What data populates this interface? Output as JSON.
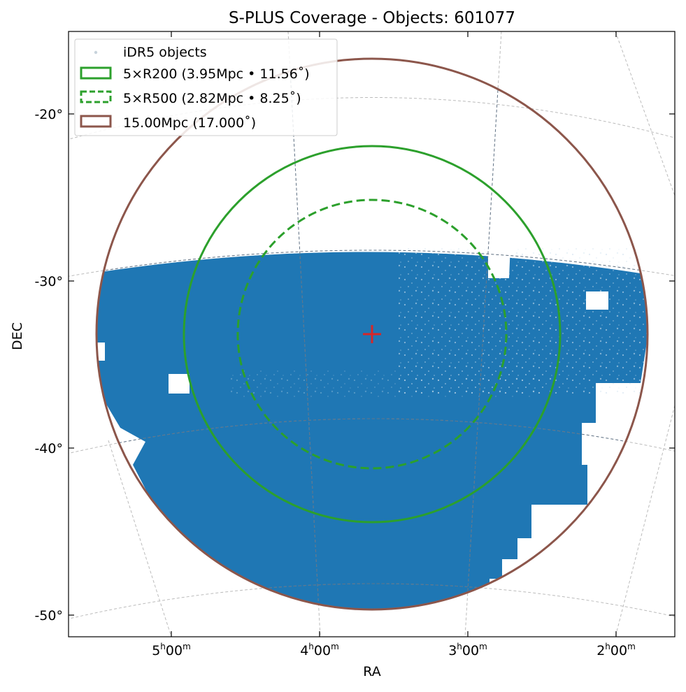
{
  "chart_data": {
    "type": "scatter",
    "title": "S-PLUS Coverage - Objects: 601077",
    "xlabel": "RA",
    "ylabel": "DEC",
    "projection": "gnomonic sky map centred on the cluster",
    "center": {
      "ra_hours": 3.64,
      "dec_deg": -33.4
    },
    "xlim_ra_hours": [
      5.72,
      1.6
    ],
    "ylim_dec_deg": [
      -51.2,
      -15.0
    ],
    "ra_ticks": [
      {
        "value": 5,
        "label_h": "5",
        "label_m": "00"
      },
      {
        "value": 4,
        "label_h": "4",
        "label_m": "00"
      },
      {
        "value": 3,
        "label_h": "3",
        "label_m": "00"
      },
      {
        "value": 2,
        "label_h": "2",
        "label_m": "00"
      }
    ],
    "dec_ticks": [
      {
        "value": -20,
        "label": "-20°"
      },
      {
        "value": -30,
        "label": "-30°"
      },
      {
        "value": -40,
        "label": "-40°"
      },
      {
        "value": -50,
        "label": "-50°"
      }
    ],
    "grid": true,
    "legend_position": "upper-left",
    "series": [
      {
        "name": "iDR5 objects",
        "kind": "point-density coverage",
        "n_objects": 601077,
        "color": "#1f77b4",
        "footprint_dec_range": [
          -49.6,
          -28.0
        ]
      },
      {
        "name": "5×R200 (3.95Mpc • 11.56$^\\circ$)",
        "label_display": "5×R200 (3.95Mpc • 11.56˚)",
        "kind": "circle",
        "radius_deg": 11.56,
        "radius_mpc": 3.95,
        "linestyle": "solid",
        "color": "#2ca02c"
      },
      {
        "name": "5×R500 (2.82Mpc • 8.25$^\\circ$)",
        "label_display": "5×R500 (2.82Mpc • 8.25˚)",
        "kind": "circle",
        "radius_deg": 8.25,
        "radius_mpc": 2.82,
        "linestyle": "dashed",
        "color": "#2ca02c"
      },
      {
        "name": "15.00Mpc (17.000$^\\circ$)",
        "label_display": "15.00Mpc (17.000˚)",
        "kind": "circle",
        "radius_deg": 17.0,
        "radius_mpc": 15.0,
        "linestyle": "solid",
        "color": "#8c564b"
      }
    ],
    "center_marker": {
      "symbol": "+",
      "color": "#d62728"
    }
  }
}
